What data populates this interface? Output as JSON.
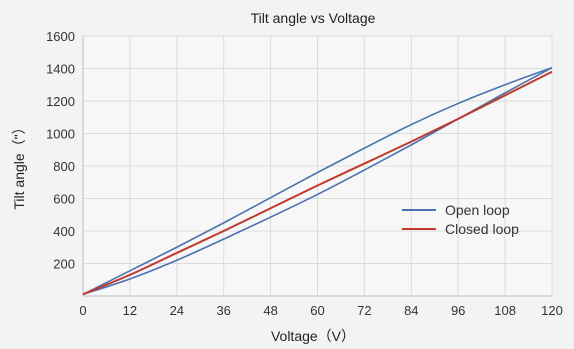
{
  "chart_data": {
    "type": "line",
    "title": "Tilt angle vs Voltage",
    "xlabel": "Voltage（V）",
    "ylabel": "Tilt angle（\"）",
    "xlim": [
      0,
      120
    ],
    "ylim": [
      0,
      1600
    ],
    "xticks": [
      0,
      12,
      24,
      36,
      48,
      60,
      72,
      84,
      96,
      108,
      120
    ],
    "yticks": [
      200,
      400,
      600,
      800,
      1000,
      1200,
      1400,
      1600
    ],
    "grid": true,
    "legend_position": "right",
    "series": [
      {
        "name": "Open loop",
        "color": "#4a72b0",
        "x": [
          0,
          12,
          24,
          36,
          48,
          60,
          72,
          84,
          96,
          108,
          120
        ],
        "y": [
          10,
          155,
          300,
          450,
          605,
          760,
          910,
          1055,
          1185,
          1300,
          1405
        ]
      },
      {
        "name": "",
        "color": "#4a72b0",
        "x": [
          0,
          12,
          24,
          36,
          48,
          60,
          72,
          84,
          96,
          108,
          120
        ],
        "y": [
          10,
          105,
          220,
          350,
          485,
          625,
          775,
          930,
          1090,
          1250,
          1405
        ]
      },
      {
        "name": "Closed loop",
        "color": "#c0392b",
        "x": [
          0,
          12,
          24,
          36,
          48,
          60,
          72,
          84,
          96,
          108,
          120
        ],
        "y": [
          10,
          130,
          265,
          400,
          540,
          680,
          815,
          950,
          1090,
          1235,
          1380
        ]
      }
    ]
  }
}
